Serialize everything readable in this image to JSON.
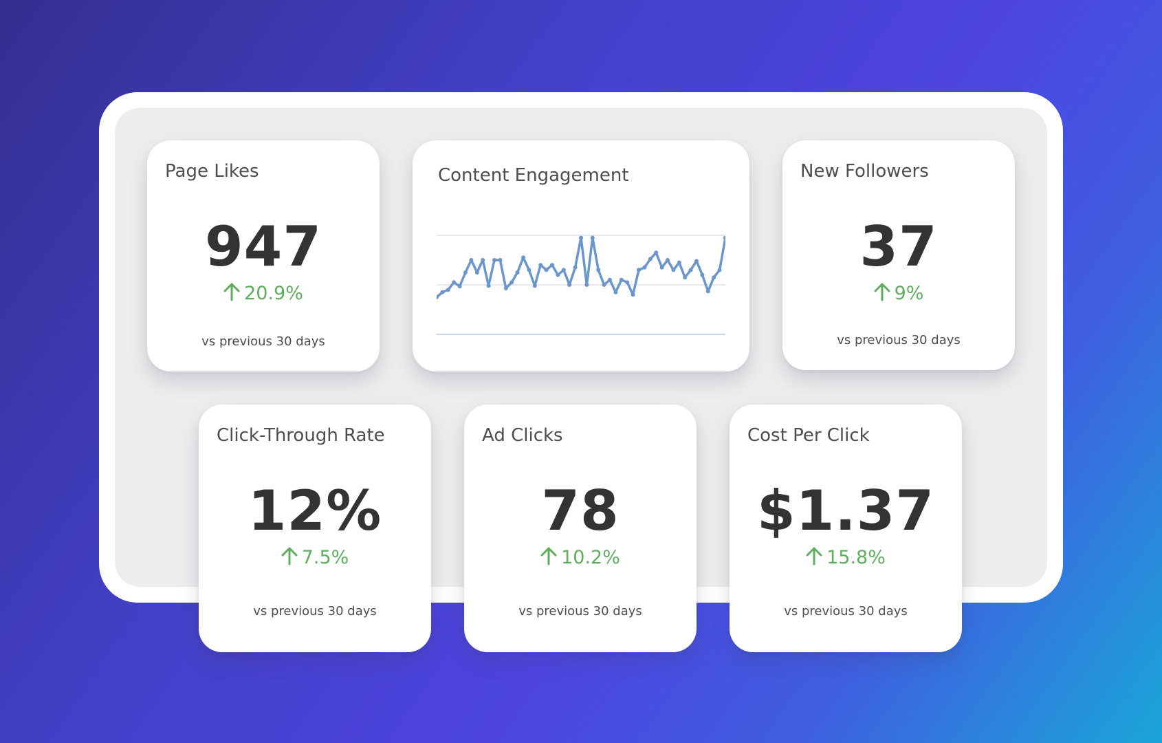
{
  "colors": {
    "positive": "#5fae5f",
    "line": "#6a96cc",
    "card": "#ffffff",
    "panel": "#ededee"
  },
  "kpis": [
    {
      "title": "Page Likes",
      "value": "947",
      "delta": "20.9%",
      "direction": "up",
      "comparison": "vs previous 30 days"
    },
    {
      "title": "New Followers",
      "value": "37",
      "delta": "9%",
      "direction": "up",
      "comparison": "vs previous 30 days"
    },
    {
      "title": "Click-Through Rate",
      "value": "12%",
      "delta": "7.5%",
      "direction": "up",
      "comparison": "vs previous 30 days"
    },
    {
      "title": "Ad Clicks",
      "value": "78",
      "delta": "10.2%",
      "direction": "up",
      "comparison": "vs previous 30 days"
    },
    {
      "title": "Cost Per Click",
      "value": "$1.37",
      "delta": "15.8%",
      "direction": "up",
      "comparison": "vs previous 30 days"
    }
  ],
  "engagement": {
    "title": "Content Engagement"
  },
  "chart_data": {
    "type": "line",
    "title": "Content Engagement",
    "xlabel": "",
    "ylabel": "",
    "ylim": [
      0,
      2
    ],
    "grid": true,
    "legend": "none",
    "series": [
      {
        "values": [
          0.75,
          0.85,
          0.9,
          1.05,
          0.97,
          1.25,
          1.5,
          1.25,
          1.5,
          0.98,
          1.5,
          1.5,
          0.93,
          1.05,
          1.25,
          1.55,
          1.3,
          0.98,
          1.4,
          1.3,
          1.4,
          1.2,
          1.3,
          1.0,
          1.35,
          1.95,
          1.0,
          1.95,
          1.3,
          1.0,
          1.1,
          0.85,
          1.1,
          1.05,
          0.8,
          1.3,
          1.35,
          1.52,
          1.65,
          1.35,
          1.5,
          1.3,
          1.45,
          1.15,
          1.3,
          1.48,
          1.2,
          0.87,
          1.15,
          1.3,
          1.95
        ]
      }
    ]
  }
}
